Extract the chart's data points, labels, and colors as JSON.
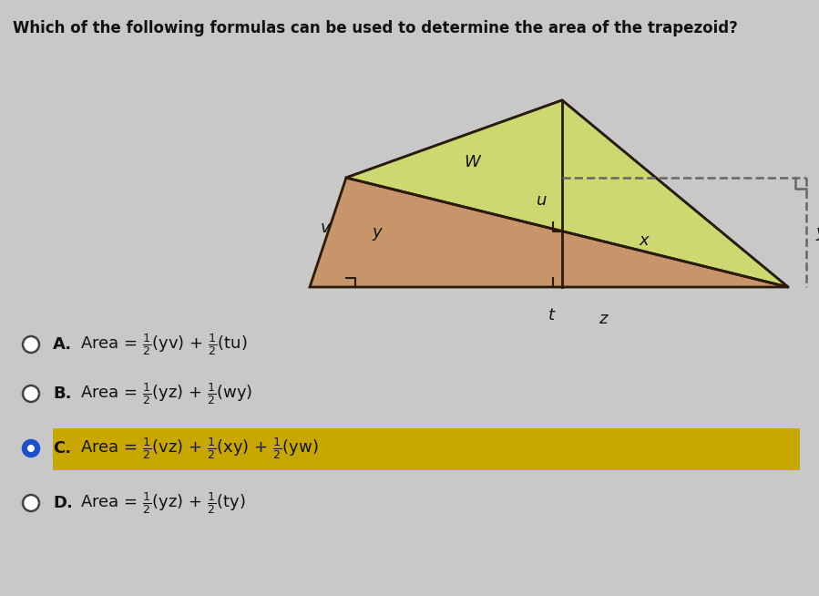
{
  "title": "Which of the following formulas can be used to determine the area of the trapezoid?",
  "title_fontsize": 12,
  "bg_color": "#c8c8c8",
  "trapezoid_fill": "#c8956a",
  "trapezoid_stroke": "#2a1a0a",
  "triangle_right_fill": "#ccd870",
  "triangle_right_stroke": "#2a1a0a",
  "dashed_color": "#666666",
  "answer_highlight": "#c8a800",
  "answer_highlight_alpha": 1.0,
  "options": [
    {
      "label": "A.",
      "formula": "Area = $\\frac{1}{2}$(yv) + $\\frac{1}{2}$(tu)",
      "selected": false
    },
    {
      "label": "B.",
      "formula": "Area = $\\frac{1}{2}$(yz) + $\\frac{1}{2}$(wy)",
      "selected": false
    },
    {
      "label": "C.",
      "formula": "Area = $\\frac{1}{2}$(vz) + $\\frac{1}{2}$(xy) + $\\frac{1}{2}$(yw)",
      "selected": true
    },
    {
      "label": "D.",
      "formula": "Area = $\\frac{1}{2}$(yz) + $\\frac{1}{2}$(ty)",
      "selected": false
    }
  ],
  "radio_selected_color": "#1a50cc",
  "radio_unselected_color": "#444444",
  "font_size_options": 13
}
